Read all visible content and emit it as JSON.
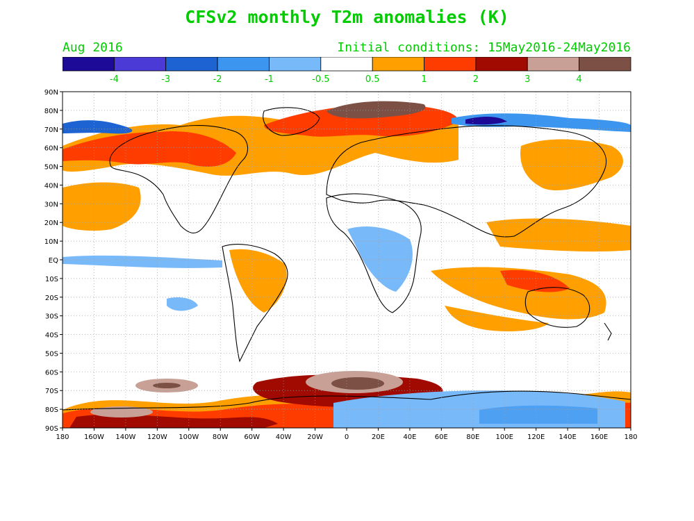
{
  "title": "CFSv2 monthly T2m anomalies (K)",
  "valid_month": "Aug 2016",
  "initial_conditions": "Initial conditions: 15May2016-24May2016",
  "colors": {
    "title_text": "#00cc00",
    "frame": "#000000",
    "grid": "#a0a0a0",
    "coast": "#000000"
  },
  "colorbar": {
    "bins": [
      {
        "color": "#1d0a96"
      },
      {
        "color": "#4b3ad6"
      },
      {
        "color": "#1e63d2"
      },
      {
        "color": "#3c96f0"
      },
      {
        "color": "#78b9fa"
      },
      {
        "color": "#ffffff"
      },
      {
        "color": "#ff9f00"
      },
      {
        "color": "#ff3c00"
      },
      {
        "color": "#a00a00"
      },
      {
        "color": "#c8a096"
      },
      {
        "color": "#7d5046"
      }
    ],
    "labels": [
      "-4",
      "-3",
      "-2",
      "-1",
      "-0.5",
      "0.5",
      "1",
      "2",
      "3",
      "4"
    ]
  },
  "axes": {
    "lat_labels": [
      "90N",
      "80N",
      "70N",
      "60N",
      "50N",
      "40N",
      "30N",
      "20N",
      "10N",
      "EQ",
      "10S",
      "20S",
      "30S",
      "40S",
      "50S",
      "60S",
      "70S",
      "80S",
      "90S"
    ],
    "lon_labels": [
      "180",
      "160W",
      "140W",
      "120W",
      "100W",
      "80W",
      "60W",
      "40W",
      "20W",
      "0",
      "20E",
      "40E",
      "60E",
      "80E",
      "100E",
      "120E",
      "140E",
      "160E",
      "180"
    ]
  },
  "anomaly_regions": [
    {
      "name": "arctic-north-of-europe",
      "level": 4
    },
    {
      "name": "antarctic-ocean-south-atlantic",
      "level": 4
    },
    {
      "name": "antarctic-ocean-south-pacific",
      "level": 4
    },
    {
      "name": "arctic-ocean-north-america",
      "level": -2
    },
    {
      "name": "siberian-arctic",
      "level": -3
    },
    {
      "name": "antarctica-interior",
      "level": -0.5
    },
    {
      "name": "equatorial-pacific",
      "level": -0.5
    },
    {
      "name": "central-africa",
      "level": -1
    }
  ]
}
